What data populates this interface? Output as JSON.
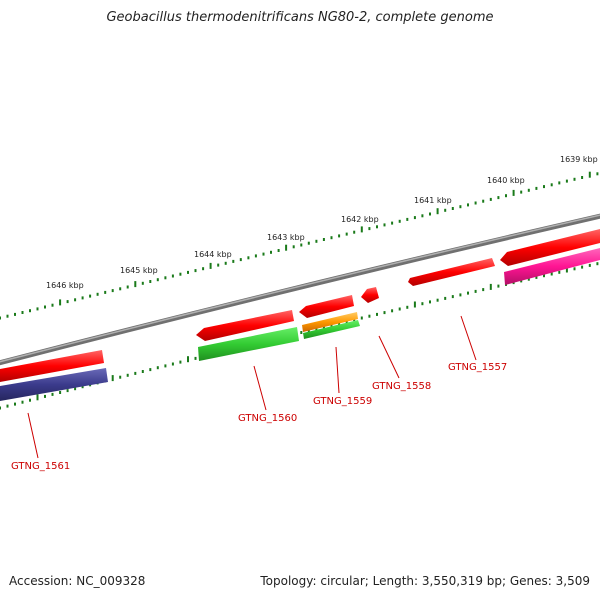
{
  "title": "Geobacillus thermodenitrificans NG80-2, complete genome",
  "footer": {
    "accession": "Accession: NC_009328",
    "summary": "Topology: circular; Length: 3,550,319 bp; Genes: 3,509"
  },
  "kbp_labels": [
    "1639 kbp",
    "1640 kbp",
    "1641 kbp",
    "1642 kbp",
    "1643 kbp",
    "1644 kbp",
    "1645 kbp",
    "1646 kbp"
  ],
  "genes": [
    {
      "label": "GTNG_1557",
      "color": "#ff1a1a"
    },
    {
      "label": "GTNG_1558",
      "color": "#ff1a1a"
    },
    {
      "label": "GTNG_1559",
      "color": "#ff9900"
    },
    {
      "label": "GTNG_1560",
      "color": "#33cc33"
    },
    {
      "label": "GTNG_1561",
      "color": "#3b3b8c"
    }
  ],
  "colors": {
    "backbone": "#808080",
    "tick": "#1a7a1a",
    "forward_gene": "#ff1a1a",
    "magenta_gene": "#ff1493",
    "label_line": "#cc0000"
  }
}
